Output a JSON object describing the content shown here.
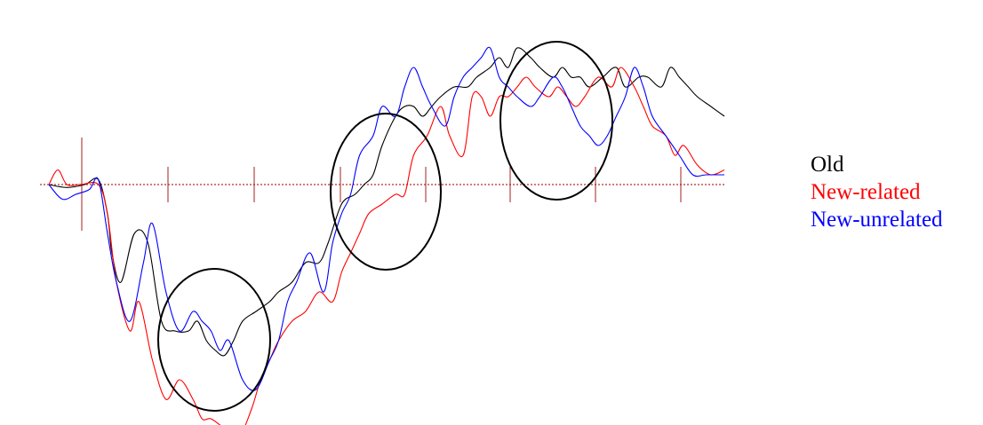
{
  "chart_data": {
    "type": "line",
    "title": "",
    "xlabel": "",
    "ylabel": "",
    "grid": false,
    "legend_position": "right",
    "tick_count": 8,
    "xlim": [
      0,
      750
    ],
    "ylim": [
      -26,
      18
    ],
    "y_inverted": true,
    "series": [
      {
        "name": "Old",
        "color": "#000000",
        "x": [
          0,
          20,
          40,
          55,
          65,
          70,
          80,
          95,
          110,
          125,
          140,
          155,
          165,
          175,
          185,
          195,
          205,
          215,
          230,
          245,
          255,
          270,
          285,
          300,
          310,
          325,
          340,
          350,
          360,
          370,
          385,
          395,
          405,
          415,
          425,
          435,
          450,
          465,
          475,
          490,
          500,
          510,
          520,
          535,
          545,
          560,
          570,
          580,
          590,
          600,
          615,
          630,
          640,
          655,
          665,
          680,
          690,
          700,
          710,
          720,
          735,
          750
        ],
        "values": [
          0,
          -0.3,
          0,
          0.5,
          -3,
          -7,
          -10,
          -5,
          -6,
          -14,
          -15,
          -15,
          -14,
          -16,
          -17,
          -17.5,
          -16,
          -14,
          -13,
          -12,
          -11,
          -10,
          -8,
          -8,
          -6,
          -2,
          -1,
          0,
          1,
          4,
          7,
          8,
          8,
          7,
          8,
          9,
          10,
          10,
          11,
          12,
          13,
          12,
          14,
          13,
          12,
          11,
          12,
          11,
          11,
          10,
          11,
          12,
          10,
          11,
          11,
          10,
          12,
          11,
          10,
          9,
          8,
          7
        ]
      },
      {
        "name": "New-related",
        "color": "#ff0000",
        "x": [
          0,
          10,
          20,
          35,
          55,
          65,
          75,
          90,
          100,
          115,
          130,
          145,
          160,
          170,
          180,
          195,
          210,
          225,
          235,
          245,
          255,
          270,
          285,
          300,
          315,
          325,
          335,
          345,
          355,
          370,
          385,
          395,
          405,
          420,
          435,
          445,
          460,
          470,
          480,
          490,
          500,
          510,
          520,
          530,
          540,
          555,
          565,
          575,
          585,
          595,
          610,
          625,
          635,
          650,
          660,
          670,
          685,
          695,
          705,
          720,
          735,
          750
        ],
        "values": [
          0,
          1.5,
          0,
          0,
          0,
          -3,
          -10,
          -15,
          -12,
          -18,
          -22,
          -20,
          -22,
          -24,
          -24,
          -25,
          -26,
          -23,
          -20,
          -18,
          -16,
          -14,
          -13,
          -11,
          -12,
          -9,
          -7,
          -5,
          -3,
          -2,
          -1,
          -1,
          3,
          5,
          8,
          5,
          3,
          9,
          9,
          7,
          9,
          9,
          10,
          11,
          10,
          9,
          10,
          9,
          8,
          9,
          11,
          10,
          12,
          10,
          8,
          6,
          5,
          3,
          4,
          2,
          1,
          1.5
        ]
      },
      {
        "name": "New-unrelated",
        "color": "#0000ff",
        "x": [
          0,
          15,
          30,
          45,
          55,
          65,
          75,
          90,
          105,
          115,
          130,
          145,
          160,
          170,
          180,
          190,
          200,
          215,
          230,
          245,
          255,
          265,
          275,
          290,
          305,
          315,
          325,
          335,
          345,
          360,
          370,
          385,
          395,
          405,
          415,
          425,
          440,
          450,
          460,
          470,
          480,
          490,
          500,
          510,
          520,
          535,
          545,
          560,
          570,
          580,
          590,
          600,
          610,
          620,
          630,
          640,
          650,
          660,
          670,
          685,
          700,
          715,
          730,
          750
        ],
        "values": [
          0,
          -1.5,
          -1,
          -0.5,
          0.5,
          -5,
          -10,
          -14,
          -8,
          -4,
          -11,
          -15,
          -13,
          -14,
          -15,
          -17,
          -16,
          -20,
          -21,
          -18,
          -16,
          -12,
          -10,
          -7,
          -11,
          -6,
          -3,
          -1,
          3,
          5,
          8,
          7,
          10,
          12,
          10,
          8,
          6,
          9,
          11,
          12,
          13,
          14,
          11,
          10,
          9,
          8,
          9,
          11,
          10,
          8,
          6,
          5,
          4,
          5,
          7,
          9,
          12,
          10,
          7,
          5,
          3,
          1,
          1,
          1
        ]
      }
    ]
  },
  "legend": {
    "items": [
      {
        "label": "Old",
        "color": "#000000"
      },
      {
        "label": "New-related",
        "color": "#ff0000"
      },
      {
        "label": "New-unrelated",
        "color": "#0000ff"
      }
    ]
  }
}
